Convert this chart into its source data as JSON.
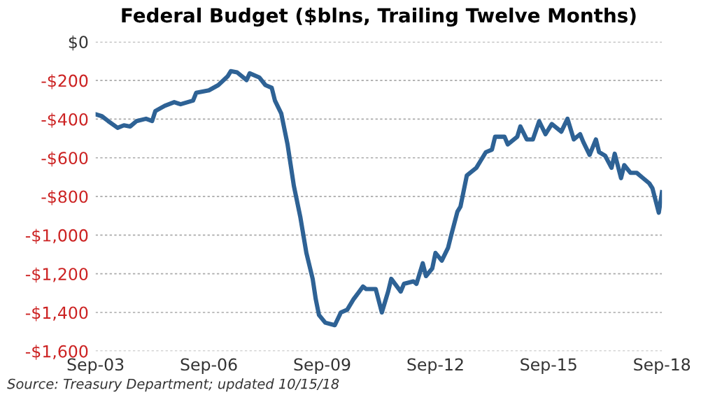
{
  "chart_data": {
    "type": "line",
    "title": "Federal Budget ($blns, Trailing Twelve Months)",
    "x": [
      "2003-09",
      "2003-11",
      "2004-01",
      "2004-04",
      "2004-06",
      "2004-08",
      "2004-10",
      "2005-01",
      "2005-03",
      "2005-04",
      "2005-07",
      "2005-10",
      "2005-12",
      "2006-04",
      "2006-05",
      "2006-09",
      "2006-12",
      "2007-03",
      "2007-04",
      "2007-06",
      "2007-09",
      "2007-10",
      "2008-01",
      "2008-03",
      "2008-05",
      "2008-06",
      "2008-08",
      "2008-10",
      "2008-12",
      "2009-02",
      "2009-04",
      "2009-06",
      "2009-07",
      "2009-08",
      "2009-10",
      "2010-01",
      "2010-03",
      "2010-05",
      "2010-07",
      "2010-10",
      "2010-11",
      "2011-02",
      "2011-04",
      "2011-06",
      "2011-07",
      "2011-10",
      "2011-11",
      "2012-02",
      "2012-03",
      "2012-05",
      "2012-06",
      "2012-08",
      "2012-09",
      "2012-11",
      "2013-01",
      "2013-02",
      "2013-04",
      "2013-05",
      "2013-07",
      "2013-08",
      "2013-10",
      "2014-01",
      "2014-03",
      "2014-04",
      "2014-07",
      "2014-08",
      "2014-11",
      "2014-12",
      "2015-02",
      "2015-04",
      "2015-06",
      "2015-08",
      "2015-10",
      "2016-01",
      "2016-03",
      "2016-05",
      "2016-07",
      "2016-08",
      "2016-10",
      "2016-12",
      "2017-01",
      "2017-03",
      "2017-05",
      "2017-06",
      "2017-08",
      "2017-09",
      "2017-11",
      "2018-01",
      "2018-03",
      "2018-05",
      "2018-06",
      "2018-08",
      "2018-09"
    ],
    "series": [
      {
        "color": "#2e6295",
        "values": [
          -375,
          -385,
          -410,
          -445,
          -432,
          -438,
          -410,
          -398,
          -410,
          -358,
          -331,
          -312,
          -323,
          -304,
          -264,
          -251,
          -224,
          -179,
          -152,
          -158,
          -198,
          -163,
          -184,
          -224,
          -238,
          -304,
          -371,
          -531,
          -745,
          -905,
          -1092,
          -1226,
          -1332,
          -1413,
          -1453,
          -1466,
          -1400,
          -1386,
          -1332,
          -1266,
          -1279,
          -1279,
          -1400,
          -1292,
          -1226,
          -1292,
          -1252,
          -1239,
          -1252,
          -1146,
          -1212,
          -1172,
          -1092,
          -1132,
          -1065,
          -999,
          -879,
          -852,
          -692,
          -678,
          -652,
          -571,
          -558,
          -491,
          -491,
          -531,
          -491,
          -438,
          -505,
          -505,
          -411,
          -478,
          -425,
          -465,
          -398,
          -505,
          -478,
          -518,
          -585,
          -505,
          -571,
          -590,
          -652,
          -579,
          -705,
          -638,
          -678,
          -678,
          -705,
          -732,
          -758,
          -884,
          -778
        ]
      }
    ],
    "xlim": [
      "2003-09",
      "2018-09"
    ],
    "xticks": [
      {
        "value": "2003-09",
        "label": "Sep-03"
      },
      {
        "value": "2006-09",
        "label": "Sep-06"
      },
      {
        "value": "2009-09",
        "label": "Sep-09"
      },
      {
        "value": "2012-09",
        "label": "Sep-12"
      },
      {
        "value": "2015-09",
        "label": "Sep-15"
      },
      {
        "value": "2018-09",
        "label": "Sep-18"
      }
    ],
    "ylim": [
      -1600,
      0
    ],
    "yticks": [
      {
        "value": 0,
        "label": "$0"
      },
      {
        "value": -200,
        "label": "-$200"
      },
      {
        "value": -400,
        "label": "-$400"
      },
      {
        "value": -600,
        "label": "-$600"
      },
      {
        "value": -800,
        "label": "-$800"
      },
      {
        "value": -1000,
        "label": "-$1,000"
      },
      {
        "value": -1200,
        "label": "-$1,200"
      },
      {
        "value": -1400,
        "label": "-$1,400"
      },
      {
        "value": -1600,
        "label": "-$1,600"
      }
    ],
    "grid": "y",
    "line_style": "solid",
    "marker": "none",
    "annotations": [
      "Source: Treasury Department; updated 10/15/18"
    ]
  }
}
